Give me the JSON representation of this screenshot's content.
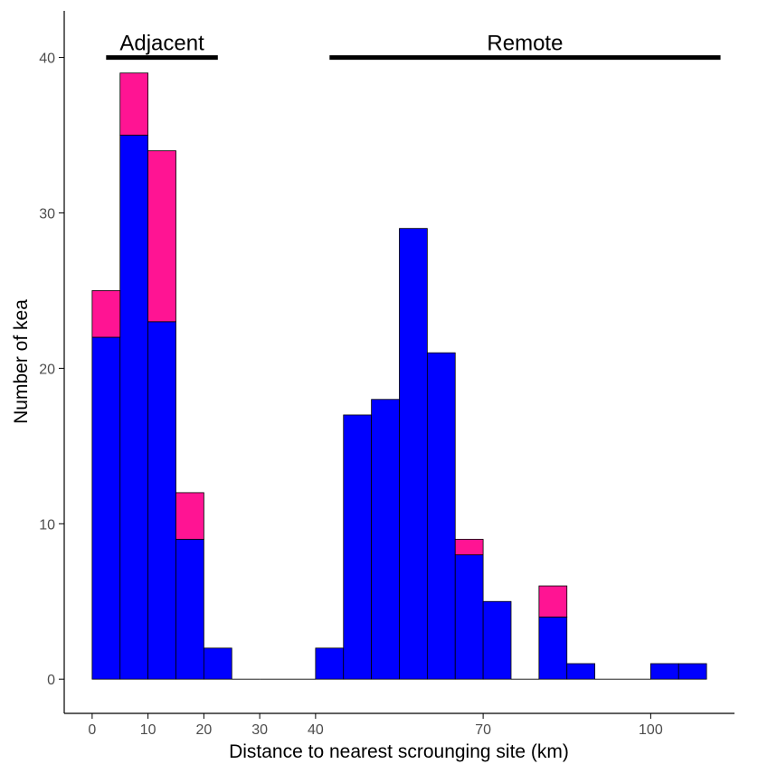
{
  "colors": {
    "base": "#0000ff",
    "extra": "#ff1493",
    "outline": "#000000",
    "axis": "#000000",
    "tick_text": "#4d4d4d"
  },
  "chart_data": {
    "type": "bar",
    "title": "",
    "xlabel": "Distance to nearest scrounging site (km)",
    "ylabel": "Number of kea",
    "xlim": [
      -5,
      115
    ],
    "ylim": [
      -2.2,
      43
    ],
    "grid": false,
    "bin_width": 5,
    "x_ticks": [
      0,
      10,
      20,
      30,
      40,
      70,
      100
    ],
    "x_tick_labels": [
      "0",
      "10",
      "20",
      "30",
      "40",
      "70",
      "100"
    ],
    "y_ticks": [
      0,
      10,
      20,
      30,
      40
    ],
    "y_tick_labels": [
      "0",
      "10",
      "20",
      "30",
      "40"
    ],
    "series": [
      {
        "role": "base",
        "x": [
          0,
          5,
          10,
          15,
          20,
          40,
          45,
          50,
          55,
          60,
          65,
          70,
          80,
          85,
          100,
          105
        ],
        "values": [
          22,
          35,
          23,
          9,
          2,
          2,
          17,
          18,
          29,
          21,
          8,
          5,
          4,
          1,
          1,
          1
        ]
      },
      {
        "role": "extra",
        "x": [
          0,
          5,
          10,
          15,
          65,
          80
        ],
        "values": [
          3,
          4,
          11,
          3,
          1,
          2
        ]
      }
    ],
    "groups": [
      {
        "label": "Adjacent",
        "from": 2.5,
        "to": 22.5
      },
      {
        "label": "Remote",
        "from": 42.5,
        "to": 112.5
      }
    ]
  }
}
